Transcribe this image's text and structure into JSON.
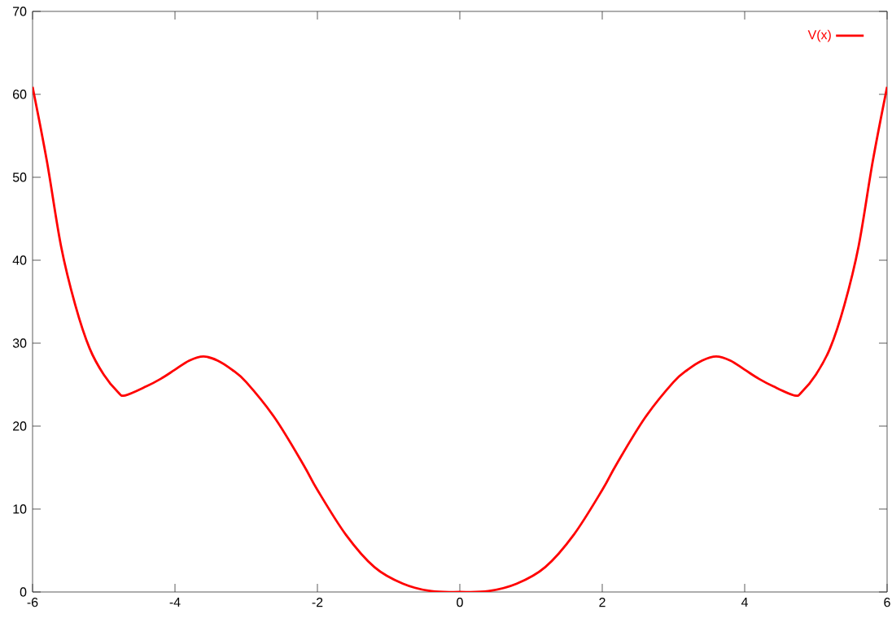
{
  "chart_data": {
    "type": "line",
    "x": [
      -6,
      -5.8,
      -5.6,
      -5.4,
      -5.2,
      -5,
      -4.8,
      -4.7,
      -4.4,
      -4.2,
      -4,
      -3.8,
      -3.6,
      -3.4,
      -3.2,
      -3,
      -2.6,
      -2.2,
      -2,
      -1.6,
      -1.2,
      -0.8,
      -0.4,
      0,
      0.4,
      0.8,
      1.2,
      1.6,
      2,
      2.2,
      2.6,
      3,
      3.2,
      3.4,
      3.6,
      3.8,
      4,
      4.2,
      4.4,
      4.7,
      4.8,
      5,
      5.2,
      5.4,
      5.6,
      5.8,
      6
    ],
    "series": [
      {
        "name": "V(x)",
        "color": "#ff0000",
        "values": [
          60.9,
          52,
          41.7,
          34.6,
          29.4,
          26.2,
          24.1,
          23.7,
          24.8,
          25.7,
          26.8,
          27.9,
          28.4,
          27.9,
          26.8,
          25.3,
          21,
          15.4,
          12.3,
          6.9,
          3,
          1,
          0.1,
          0,
          0.1,
          1,
          3,
          6.9,
          12.3,
          15.4,
          21,
          25.3,
          26.8,
          27.9,
          28.4,
          27.9,
          26.8,
          25.7,
          24.8,
          23.7,
          24.1,
          26.2,
          29.4,
          34.6,
          41.7,
          52,
          60.9
        ]
      }
    ],
    "xlim": [
      -6,
      6
    ],
    "ylim": [
      0,
      70
    ],
    "xticks": [
      -6,
      -4,
      -2,
      0,
      2,
      4,
      6
    ],
    "yticks": [
      0,
      10,
      20,
      30,
      40,
      50,
      60,
      70
    ],
    "legend": "top right",
    "grid": false,
    "marker": "none",
    "line_style": "solid"
  }
}
